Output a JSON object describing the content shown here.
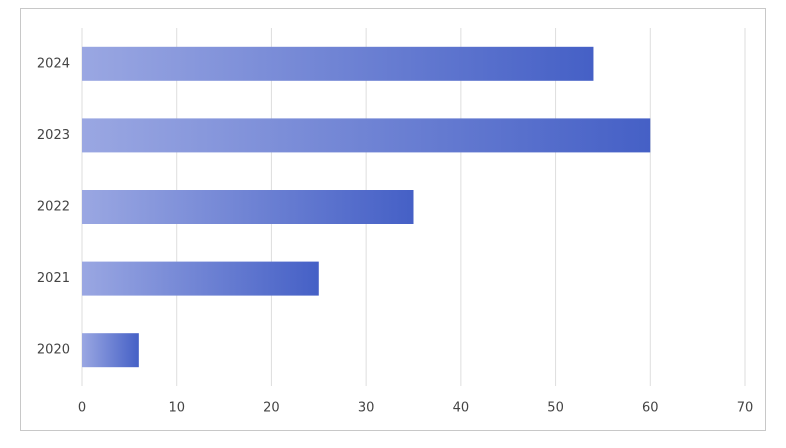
{
  "chart_data": {
    "type": "hbar",
    "categories": [
      "2020",
      "2021",
      "2022",
      "2023",
      "2024"
    ],
    "values": [
      6,
      25,
      35,
      60,
      54
    ],
    "gradient": [
      "#9aa7e2",
      "#4560c6"
    ],
    "xlim": [
      0,
      70
    ],
    "xticks": [
      0,
      10,
      20,
      30,
      40,
      50,
      60,
      70
    ],
    "grid": true
  }
}
